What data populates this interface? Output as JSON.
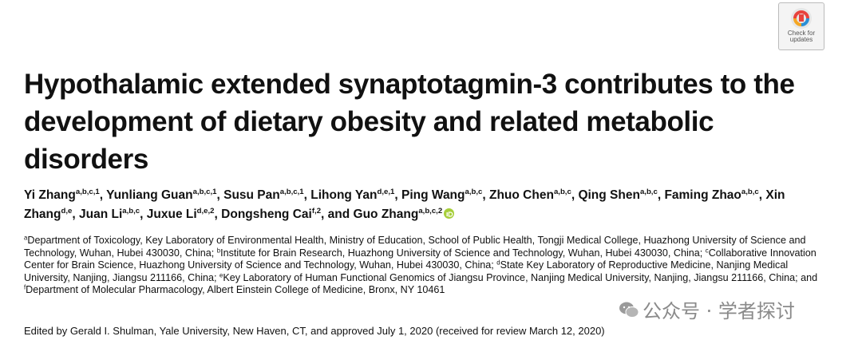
{
  "badge": {
    "text": "Check for updates"
  },
  "title": "Hypothalamic extended synaptotagmin-3 contributes to the development of dietary obesity and related metabolic disorders",
  "authors": [
    {
      "name": "Yi Zhang",
      "sup": "a,b,c,1",
      "sep": ", "
    },
    {
      "name": "Yunliang Guan",
      "sup": "a,b,c,1",
      "sep": ", "
    },
    {
      "name": "Susu Pan",
      "sup": "a,b,c,1",
      "sep": ", "
    },
    {
      "name": "Lihong Yan",
      "sup": "d,e,1",
      "sep": ", "
    },
    {
      "name": "Ping Wang",
      "sup": "a,b,c",
      "sep": ", "
    },
    {
      "name": "Zhuo Chen",
      "sup": "a,b,c",
      "sep": ", "
    },
    {
      "name": "Qing Shen",
      "sup": "a,b,c",
      "sep": ", "
    },
    {
      "name": "Faming Zhao",
      "sup": "a,b,c",
      "sep": ", "
    },
    {
      "name": "Xin Zhang",
      "sup": "d,e",
      "sep": ", "
    },
    {
      "name": "Juan Li",
      "sup": "a,b,c",
      "sep": ", "
    },
    {
      "name": "Juxue Li",
      "sup": "d,e,2",
      "sep": ", "
    },
    {
      "name": "Dongsheng Cai",
      "sup": "f,2",
      "sep": ", and "
    },
    {
      "name": "Guo Zhang",
      "sup": "a,b,c,2"
    }
  ],
  "affiliations": [
    {
      "sup": "a",
      "text": "Department of Toxicology, Key Laboratory of Environmental Health, Ministry of Education, School of Public Health, Tongji Medical College, Huazhong University of Science and Technology, Wuhan, Hubei 430030, China; "
    },
    {
      "sup": "b",
      "text": "Institute for Brain Research, Huazhong University of Science and Technology, Wuhan, Hubei 430030, China; "
    },
    {
      "sup": "c",
      "text": "Collaborative Innovation Center for Brain Science, Huazhong University of Science and Technology, Wuhan, Hubei 430030, China; "
    },
    {
      "sup": "d",
      "text": "State Key Laboratory of Reproductive Medicine, Nanjing Medical University, Nanjing, Jiangsu 211166, China; "
    },
    {
      "sup": "e",
      "text": "Key Laboratory of Human Functional Genomics of Jiangsu Province, Nanjing Medical University, Nanjing, Jiangsu 211166, China; and "
    },
    {
      "sup": "f",
      "text": "Department of Molecular Pharmacology, Albert Einstein College of Medicine, Bronx, NY 10461"
    }
  ],
  "edited_by": "Edited by Gerald I. Shulman, Yale University, New Haven, CT, and approved July 1, 2020 (received for review March 12, 2020)",
  "watermark": "公众号 · 学者探讨"
}
